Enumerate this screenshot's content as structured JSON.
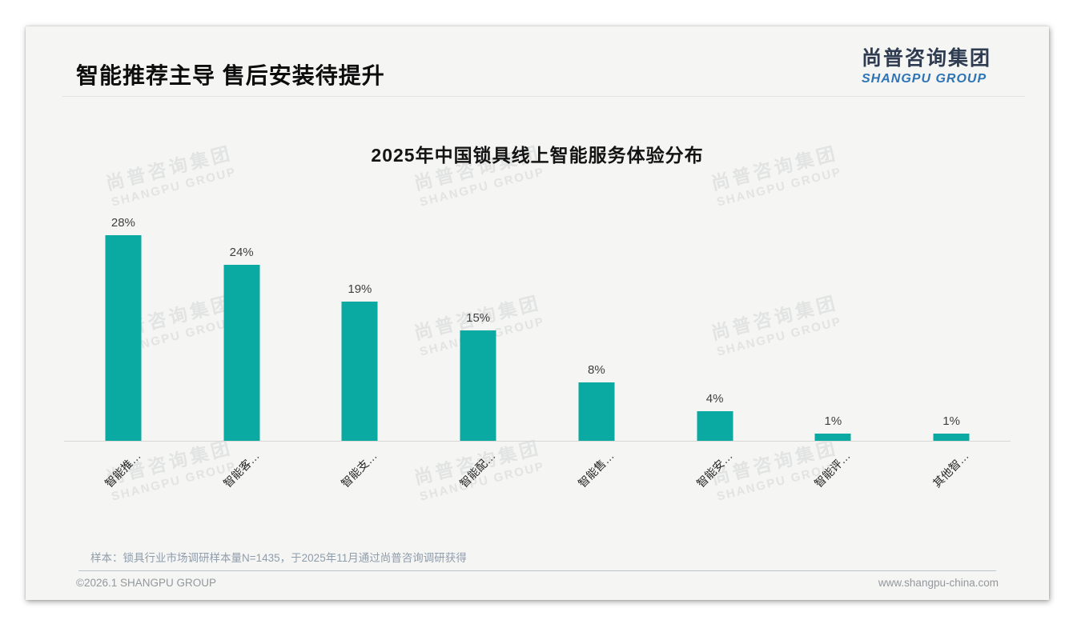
{
  "header": {
    "title": "智能推荐主导 售后安装待提升",
    "logo": {
      "cn": "尚普咨询集团",
      "en": "SHANGPU GROUP"
    }
  },
  "watermark": {
    "line1": "尚普咨询集团",
    "line2": "SHANGPU GROUP"
  },
  "chart_data": {
    "type": "bar",
    "title": "2025年中国锁具线上智能服务体验分布",
    "categories": [
      "智能推…",
      "智能客…",
      "智能支…",
      "智能配…",
      "智能售…",
      "智能安…",
      "智能评…",
      "其他智…"
    ],
    "values": [
      28,
      24,
      19,
      15,
      8,
      4,
      1,
      1
    ],
    "value_labels": [
      "28%",
      "24%",
      "19%",
      "15%",
      "8%",
      "4%",
      "1%",
      "1%"
    ],
    "unit": "%",
    "bar_color": "#0aa9a1",
    "xlabel": "",
    "ylabel": "",
    "ylim": [
      0,
      30
    ],
    "grid": false,
    "legend_position": "none",
    "x_label_rotation_deg": 45
  },
  "footnote": "样本：锁具行业市场调研样本量N=1435，于2025年11月通过尚普咨询调研获得",
  "footer": {
    "left": "©2026.1 SHANGPU GROUP",
    "right": "www.shangpu-china.com"
  }
}
